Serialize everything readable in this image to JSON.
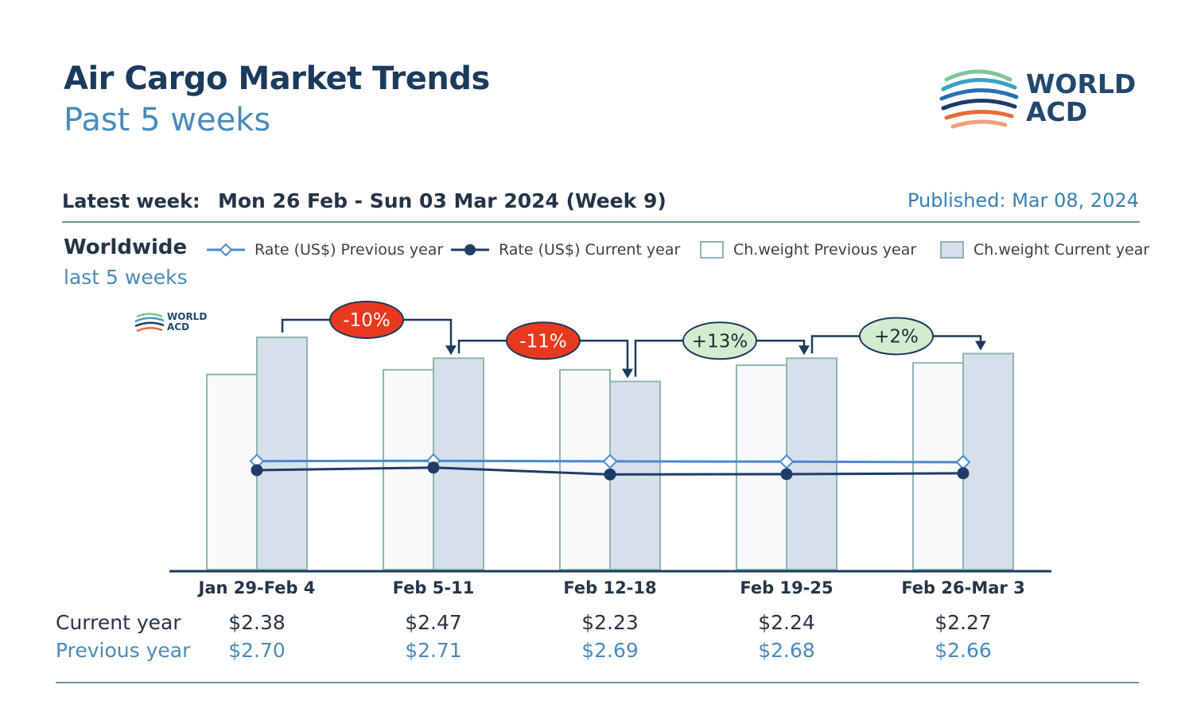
{
  "header": {
    "title": "Air Cargo Market Trends",
    "subtitle": "Past 5 weeks",
    "logo_line1": "WORLD",
    "logo_line2": "ACD"
  },
  "info": {
    "latest_label": "Latest week:",
    "latest_value": "Mon 26 Feb - Sun 03 Mar 2024 (Week 9)",
    "published": "Published: Mar 08, 2024"
  },
  "region": {
    "name": "Worldwide",
    "period": "last 5 weeks"
  },
  "legend": {
    "rate_prev": "Rate (US$) Previous year",
    "rate_curr": "Rate (US$) Current year",
    "weight_prev": "Ch.weight Previous year",
    "weight_curr": "Ch.weight Current year"
  },
  "watermark": {
    "line1": "WORLD",
    "line2": "ACD"
  },
  "rows": {
    "current_label": "Current year",
    "previous_label": "Previous year"
  },
  "colors": {
    "navy": "#1b3a5c",
    "line_prev": "#4a8ad0",
    "line_curr": "#1e3c66",
    "bar_prev_fill": "#f7f9fa",
    "bar_curr_fill": "#d6e0ea",
    "bar_stroke": "#8fb5b0",
    "neg_badge": "#e8391f",
    "pos_badge": "#d5ebcf"
  },
  "chart_data": {
    "type": "bar",
    "categories": [
      "Jan 29-Feb 4",
      "Feb 5-11",
      "Feb 12-18",
      "Feb 19-25",
      "Feb 26-Mar 3"
    ],
    "series": [
      {
        "name": "Ch.weight Previous year",
        "kind": "bar",
        "values": [
          0.84,
          0.86,
          0.86,
          0.88,
          0.89
        ]
      },
      {
        "name": "Ch.weight Current year",
        "kind": "bar",
        "values": [
          1.0,
          0.91,
          0.81,
          0.91,
          0.93
        ]
      },
      {
        "name": "Rate (US$) Previous year",
        "kind": "line",
        "values": [
          2.7,
          2.71,
          2.69,
          2.68,
          2.66
        ]
      },
      {
        "name": "Rate (US$) Current year",
        "kind": "line",
        "values": [
          2.38,
          2.47,
          2.23,
          2.24,
          2.27
        ]
      }
    ],
    "current_labels": [
      "$2.38",
      "$2.47",
      "$2.23",
      "$2.24",
      "$2.27"
    ],
    "previous_labels": [
      "$2.70",
      "$2.71",
      "$2.69",
      "$2.68",
      "$2.66"
    ],
    "changes": [
      {
        "label": "-10%",
        "sign": "negative"
      },
      {
        "label": "-11%",
        "sign": "negative"
      },
      {
        "label": "+13%",
        "sign": "positive"
      },
      {
        "label": "+2%",
        "sign": "positive"
      }
    ],
    "bar_ylim": [
      0,
      1.0
    ],
    "grid": false,
    "legend_position": "top"
  }
}
